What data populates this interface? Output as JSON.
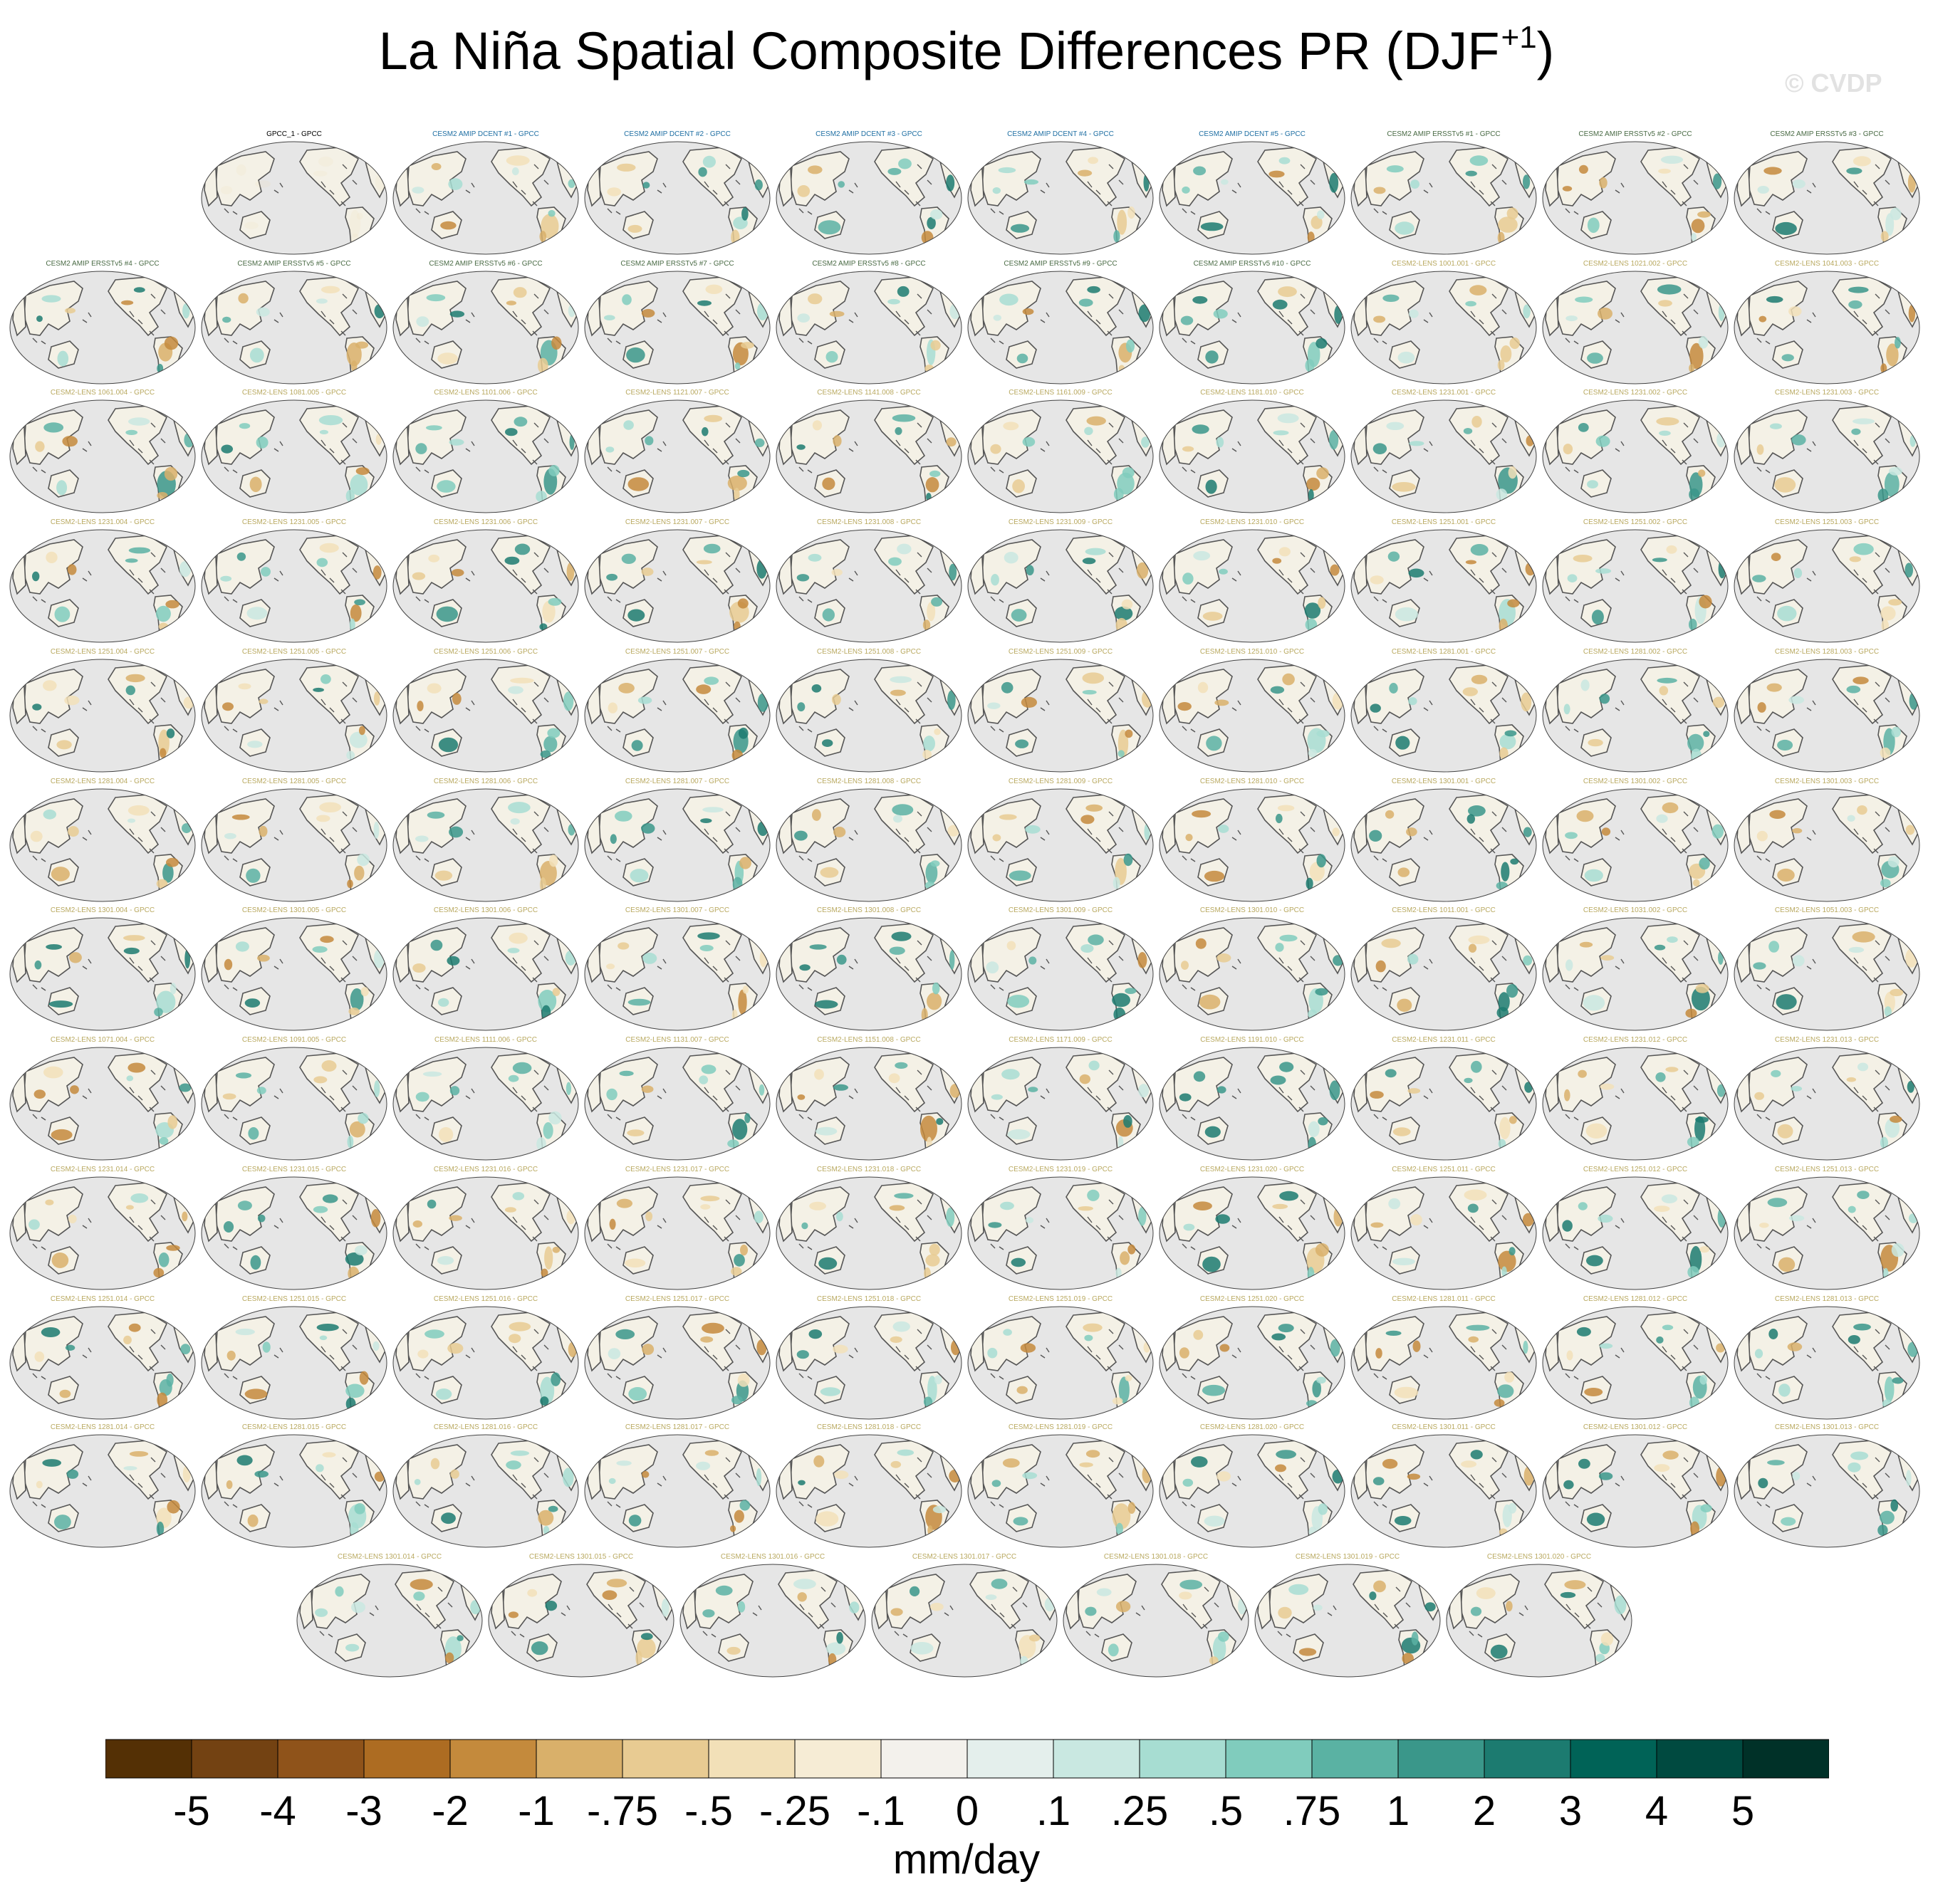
{
  "title": {
    "main": "La Niña Spatial Composite Differences PR (DJF",
    "superscript": "+1",
    "suffix": ")"
  },
  "watermark": "© CVDP",
  "chart_data": {
    "type": "map-panel-grid",
    "variable": "PR",
    "season": "DJF+1",
    "units": "mm/day",
    "colors": {
      "obs_title": "#000000",
      "dcent_title": "#1f6fa3",
      "ersst_title": "#4a6b45",
      "lens_title": "#b9a960",
      "ocean": "#e6e6e6",
      "land": "#f4f1e6",
      "coast": "#555555"
    },
    "panels": [
      {
        "title": "GPCC_1 - GPCC",
        "group": "obs"
      },
      {
        "title": "CESM2 AMIP DCENT #1 - GPCC",
        "group": "dcent"
      },
      {
        "title": "CESM2 AMIP DCENT #2 - GPCC",
        "group": "dcent"
      },
      {
        "title": "CESM2 AMIP DCENT #3 - GPCC",
        "group": "dcent"
      },
      {
        "title": "CESM2 AMIP DCENT #4 - GPCC",
        "group": "dcent"
      },
      {
        "title": "CESM2 AMIP DCENT #5 - GPCC",
        "group": "dcent"
      },
      {
        "title": "CESM2 AMIP ERSSTv5 #1 - GPCC",
        "group": "ersst"
      },
      {
        "title": "CESM2 AMIP ERSSTv5 #2 - GPCC",
        "group": "ersst"
      },
      {
        "title": "CESM2 AMIP ERSSTv5 #3 - GPCC",
        "group": "ersst"
      },
      {
        "title": "CESM2 AMIP ERSSTv5 #4 - GPCC",
        "group": "ersst"
      },
      {
        "title": "CESM2 AMIP ERSSTv5 #5 - GPCC",
        "group": "ersst"
      },
      {
        "title": "CESM2 AMIP ERSSTv5 #6 - GPCC",
        "group": "ersst"
      },
      {
        "title": "CESM2 AMIP ERSSTv5 #7 - GPCC",
        "group": "ersst"
      },
      {
        "title": "CESM2 AMIP ERSSTv5 #8 - GPCC",
        "group": "ersst"
      },
      {
        "title": "CESM2 AMIP ERSSTv5 #9 - GPCC",
        "group": "ersst"
      },
      {
        "title": "CESM2 AMIP ERSSTv5 #10 - GPCC",
        "group": "ersst"
      },
      {
        "title": "CESM2-LENS 1001.001 - GPCC",
        "group": "lens"
      },
      {
        "title": "CESM2-LENS 1021.002 - GPCC",
        "group": "lens"
      },
      {
        "title": "CESM2-LENS 1041.003 - GPCC",
        "group": "lens"
      },
      {
        "title": "CESM2-LENS 1061.004 - GPCC",
        "group": "lens"
      },
      {
        "title": "CESM2-LENS 1081.005 - GPCC",
        "group": "lens"
      },
      {
        "title": "CESM2-LENS 1101.006 - GPCC",
        "group": "lens"
      },
      {
        "title": "CESM2-LENS 1121.007 - GPCC",
        "group": "lens"
      },
      {
        "title": "CESM2-LENS 1141.008 - GPCC",
        "group": "lens"
      },
      {
        "title": "CESM2-LENS 1161.009 - GPCC",
        "group": "lens"
      },
      {
        "title": "CESM2-LENS 1181.010 - GPCC",
        "group": "lens"
      },
      {
        "title": "CESM2-LENS 1231.001 - GPCC",
        "group": "lens"
      },
      {
        "title": "CESM2-LENS 1231.002 - GPCC",
        "group": "lens"
      },
      {
        "title": "CESM2-LENS 1231.003 - GPCC",
        "group": "lens"
      },
      {
        "title": "CESM2-LENS 1231.004 - GPCC",
        "group": "lens"
      },
      {
        "title": "CESM2-LENS 1231.005 - GPCC",
        "group": "lens"
      },
      {
        "title": "CESM2-LENS 1231.006 - GPCC",
        "group": "lens"
      },
      {
        "title": "CESM2-LENS 1231.007 - GPCC",
        "group": "lens"
      },
      {
        "title": "CESM2-LENS 1231.008 - GPCC",
        "group": "lens"
      },
      {
        "title": "CESM2-LENS 1231.009 - GPCC",
        "group": "lens"
      },
      {
        "title": "CESM2-LENS 1231.010 - GPCC",
        "group": "lens"
      },
      {
        "title": "CESM2-LENS 1251.001 - GPCC",
        "group": "lens"
      },
      {
        "title": "CESM2-LENS 1251.002 - GPCC",
        "group": "lens"
      },
      {
        "title": "CESM2-LENS 1251.003 - GPCC",
        "group": "lens"
      },
      {
        "title": "CESM2-LENS 1251.004 - GPCC",
        "group": "lens"
      },
      {
        "title": "CESM2-LENS 1251.005 - GPCC",
        "group": "lens"
      },
      {
        "title": "CESM2-LENS 1251.006 - GPCC",
        "group": "lens"
      },
      {
        "title": "CESM2-LENS 1251.007 - GPCC",
        "group": "lens"
      },
      {
        "title": "CESM2-LENS 1251.008 - GPCC",
        "group": "lens"
      },
      {
        "title": "CESM2-LENS 1251.009 - GPCC",
        "group": "lens"
      },
      {
        "title": "CESM2-LENS 1251.010 - GPCC",
        "group": "lens"
      },
      {
        "title": "CESM2-LENS 1281.001 - GPCC",
        "group": "lens"
      },
      {
        "title": "CESM2-LENS 1281.002 - GPCC",
        "group": "lens"
      },
      {
        "title": "CESM2-LENS 1281.003 - GPCC",
        "group": "lens"
      },
      {
        "title": "CESM2-LENS 1281.004 - GPCC",
        "group": "lens"
      },
      {
        "title": "CESM2-LENS 1281.005 - GPCC",
        "group": "lens"
      },
      {
        "title": "CESM2-LENS 1281.006 - GPCC",
        "group": "lens"
      },
      {
        "title": "CESM2-LENS 1281.007 - GPCC",
        "group": "lens"
      },
      {
        "title": "CESM2-LENS 1281.008 - GPCC",
        "group": "lens"
      },
      {
        "title": "CESM2-LENS 1281.009 - GPCC",
        "group": "lens"
      },
      {
        "title": "CESM2-LENS 1281.010 - GPCC",
        "group": "lens"
      },
      {
        "title": "CESM2-LENS 1301.001 - GPCC",
        "group": "lens"
      },
      {
        "title": "CESM2-LENS 1301.002 - GPCC",
        "group": "lens"
      },
      {
        "title": "CESM2-LENS 1301.003 - GPCC",
        "group": "lens"
      },
      {
        "title": "CESM2-LENS 1301.004 - GPCC",
        "group": "lens"
      },
      {
        "title": "CESM2-LENS 1301.005 - GPCC",
        "group": "lens"
      },
      {
        "title": "CESM2-LENS 1301.006 - GPCC",
        "group": "lens"
      },
      {
        "title": "CESM2-LENS 1301.007 - GPCC",
        "group": "lens"
      },
      {
        "title": "CESM2-LENS 1301.008 - GPCC",
        "group": "lens"
      },
      {
        "title": "CESM2-LENS 1301.009 - GPCC",
        "group": "lens"
      },
      {
        "title": "CESM2-LENS 1301.010 - GPCC",
        "group": "lens"
      },
      {
        "title": "CESM2-LENS 1011.001 - GPCC",
        "group": "lens"
      },
      {
        "title": "CESM2-LENS 1031.002 - GPCC",
        "group": "lens"
      },
      {
        "title": "CESM2-LENS 1051.003 - GPCC",
        "group": "lens"
      },
      {
        "title": "CESM2-LENS 1071.004 - GPCC",
        "group": "lens"
      },
      {
        "title": "CESM2-LENS 1091.005 - GPCC",
        "group": "lens"
      },
      {
        "title": "CESM2-LENS 1111.006 - GPCC",
        "group": "lens"
      },
      {
        "title": "CESM2-LENS 1131.007 - GPCC",
        "group": "lens"
      },
      {
        "title": "CESM2-LENS 1151.008 - GPCC",
        "group": "lens"
      },
      {
        "title": "CESM2-LENS 1171.009 - GPCC",
        "group": "lens"
      },
      {
        "title": "CESM2-LENS 1191.010 - GPCC",
        "group": "lens"
      },
      {
        "title": "CESM2-LENS 1231.011 - GPCC",
        "group": "lens"
      },
      {
        "title": "CESM2-LENS 1231.012 - GPCC",
        "group": "lens"
      },
      {
        "title": "CESM2-LENS 1231.013 - GPCC",
        "group": "lens"
      },
      {
        "title": "CESM2-LENS 1231.014 - GPCC",
        "group": "lens"
      },
      {
        "title": "CESM2-LENS 1231.015 - GPCC",
        "group": "lens"
      },
      {
        "title": "CESM2-LENS 1231.016 - GPCC",
        "group": "lens"
      },
      {
        "title": "CESM2-LENS 1231.017 - GPCC",
        "group": "lens"
      },
      {
        "title": "CESM2-LENS 1231.018 - GPCC",
        "group": "lens"
      },
      {
        "title": "CESM2-LENS 1231.019 - GPCC",
        "group": "lens"
      },
      {
        "title": "CESM2-LENS 1231.020 - GPCC",
        "group": "lens"
      },
      {
        "title": "CESM2-LENS 1251.011 - GPCC",
        "group": "lens"
      },
      {
        "title": "CESM2-LENS 1251.012 - GPCC",
        "group": "lens"
      },
      {
        "title": "CESM2-LENS 1251.013 - GPCC",
        "group": "lens"
      },
      {
        "title": "CESM2-LENS 1251.014 - GPCC",
        "group": "lens"
      },
      {
        "title": "CESM2-LENS 1251.015 - GPCC",
        "group": "lens"
      },
      {
        "title": "CESM2-LENS 1251.016 - GPCC",
        "group": "lens"
      },
      {
        "title": "CESM2-LENS 1251.017 - GPCC",
        "group": "lens"
      },
      {
        "title": "CESM2-LENS 1251.018 - GPCC",
        "group": "lens"
      },
      {
        "title": "CESM2-LENS 1251.019 - GPCC",
        "group": "lens"
      },
      {
        "title": "CESM2-LENS 1251.020 - GPCC",
        "group": "lens"
      },
      {
        "title": "CESM2-LENS 1281.011 - GPCC",
        "group": "lens"
      },
      {
        "title": "CESM2-LENS 1281.012 - GPCC",
        "group": "lens"
      },
      {
        "title": "CESM2-LENS 1281.013 - GPCC",
        "group": "lens"
      },
      {
        "title": "CESM2-LENS 1281.014 - GPCC",
        "group": "lens"
      },
      {
        "title": "CESM2-LENS 1281.015 - GPCC",
        "group": "lens"
      },
      {
        "title": "CESM2-LENS 1281.016 - GPCC",
        "group": "lens"
      },
      {
        "title": "CESM2-LENS 1281.017 - GPCC",
        "group": "lens"
      },
      {
        "title": "CESM2-LENS 1281.018 - GPCC",
        "group": "lens"
      },
      {
        "title": "CESM2-LENS 1281.019 - GPCC",
        "group": "lens"
      },
      {
        "title": "CESM2-LENS 1281.020 - GPCC",
        "group": "lens"
      },
      {
        "title": "CESM2-LENS 1301.011 - GPCC",
        "group": "lens"
      },
      {
        "title": "CESM2-LENS 1301.012 - GPCC",
        "group": "lens"
      },
      {
        "title": "CESM2-LENS 1301.013 - GPCC",
        "group": "lens"
      },
      {
        "title": "CESM2-LENS 1301.014 - GPCC",
        "group": "lens"
      },
      {
        "title": "CESM2-LENS 1301.015 - GPCC",
        "group": "lens"
      },
      {
        "title": "CESM2-LENS 1301.016 - GPCC",
        "group": "lens"
      },
      {
        "title": "CESM2-LENS 1301.017 - GPCC",
        "group": "lens"
      },
      {
        "title": "CESM2-LENS 1301.018 - GPCC",
        "group": "lens"
      },
      {
        "title": "CESM2-LENS 1301.019 - GPCC",
        "group": "lens"
      },
      {
        "title": "CESM2-LENS 1301.020 - GPCC",
        "group": "lens"
      }
    ],
    "colorbar": {
      "levels": [
        "-5",
        "-4",
        "-3",
        "-2",
        "-1",
        "-.75",
        "-.5",
        "-.25",
        "-.1",
        "0",
        ".1",
        ".25",
        ".5",
        ".75",
        "1",
        "2",
        "3",
        "4",
        "5"
      ],
      "colors": [
        "#543005",
        "#734212",
        "#8f531a",
        "#ad6c22",
        "#c48a3c",
        "#d9b06a",
        "#e8cb92",
        "#f2e0b8",
        "#f6ecd5",
        "#f3f1ec",
        "#e4efec",
        "#c9e8e1",
        "#a7ddd2",
        "#80ccbd",
        "#5ab2a3",
        "#3a978a",
        "#1c7b70",
        "#006357",
        "#004a40",
        "#003128"
      ],
      "units_label": "mm/day"
    }
  }
}
